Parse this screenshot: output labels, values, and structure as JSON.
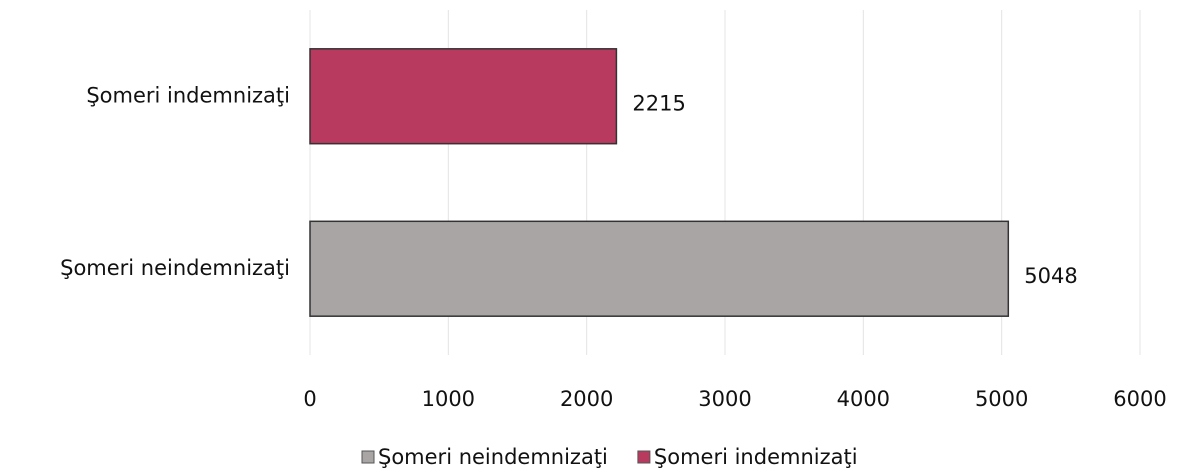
{
  "chart_data": {
    "type": "bar",
    "orientation": "horizontal",
    "categories": [
      "Şomeri neindemnizaţi",
      "Şomeri indemnizaţi"
    ],
    "series": [
      {
        "name": "Şomeri neindemnizaţi",
        "color": "#a9a5a5",
        "values": [
          5048,
          null
        ]
      },
      {
        "name": "Şomeri indemnizaţi",
        "color": "#b83a5e",
        "values": [
          null,
          2215
        ]
      }
    ],
    "xlim": [
      0,
      6000
    ],
    "xticks": [
      0,
      1000,
      2000,
      3000,
      4000,
      5000,
      6000
    ],
    "grid": true,
    "legend": "bottom"
  }
}
